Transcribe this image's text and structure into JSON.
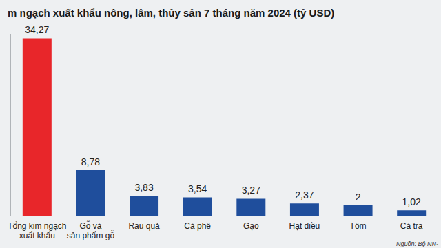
{
  "chart_data": {
    "type": "bar",
    "title": "m ngạch xuất khẩu nông, lâm, thủy sản 7 tháng năm 2024 (tỷ USD)",
    "annotations": [
      "Nguồn: Bộ NN-"
    ],
    "categories": [
      "Tổng kim ngạch\nxuất khẩu",
      "Gỗ và\nsản phẩm gỗ",
      "Rau quả",
      "Cà phê",
      "Gạo",
      "Hạt điều",
      "Tôm",
      "Cá tra"
    ],
    "values": [
      34.27,
      8.78,
      3.83,
      3.54,
      3.27,
      2.37,
      2,
      1.02
    ],
    "value_labels": [
      "34,27",
      "8,78",
      "3,83",
      "3,54",
      "3,27",
      "2,37",
      "2",
      "1,02"
    ],
    "colors": [
      "#e8262a",
      "#1f4e9c",
      "#1f4e9c",
      "#1f4e9c",
      "#1f4e9c",
      "#1f4e9c",
      "#1f4e9c",
      "#1f4e9c"
    ],
    "ylim": [
      0,
      35
    ],
    "data_labels": true,
    "tick_labels": "x",
    "grid": false
  }
}
